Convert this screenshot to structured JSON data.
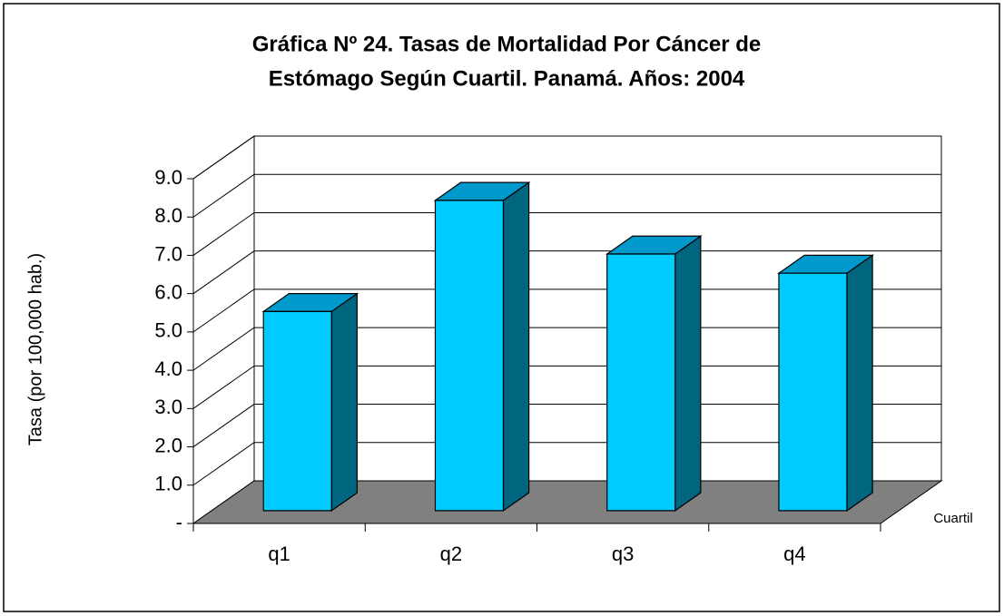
{
  "chart_data": {
    "type": "bar3d",
    "title": "Gráfica Nº 24. Tasas de Mortalidad Por Cáncer de",
    "subtitle": "Estómago Según Cuartil. Panamá. Años: 2004",
    "y_label": "Tasa (por 100,000 hab.)",
    "x_label": "Cuartil",
    "categories": [
      "q1",
      "q2",
      "q3",
      "q4"
    ],
    "values": [
      5.2,
      8.1,
      6.7,
      6.2
    ],
    "color": "#00ccff",
    "ylim": [
      0,
      9
    ],
    "yticks": [
      {
        "value": 0,
        "label": "-"
      },
      {
        "value": 1,
        "label": "1.0"
      },
      {
        "value": 2,
        "label": "2.0"
      },
      {
        "value": 3,
        "label": "3.0"
      },
      {
        "value": 4,
        "label": "4.0"
      },
      {
        "value": 5,
        "label": "5.0"
      },
      {
        "value": 6,
        "label": "6.0"
      },
      {
        "value": 7,
        "label": "7.0"
      },
      {
        "value": 8,
        "label": "8.0"
      },
      {
        "value": 9,
        "label": "9.0"
      }
    ],
    "grid": true
  }
}
